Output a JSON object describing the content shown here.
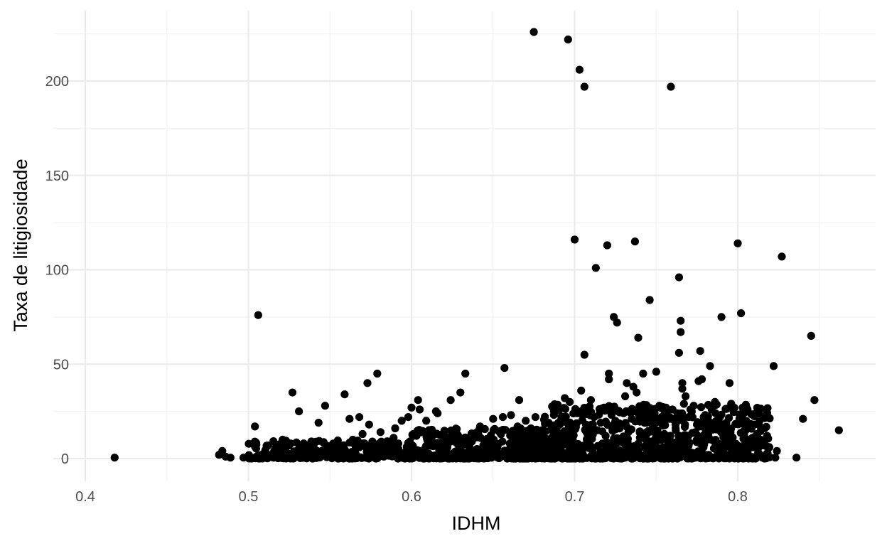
{
  "chart_data": {
    "type": "scatter",
    "xlabel": "IDHM",
    "ylabel": "Taxa de litigiosidade",
    "xlim": [
      0.4,
      0.88
    ],
    "ylim": [
      -10,
      225
    ],
    "x_ticks": [
      0.4,
      0.5,
      0.6,
      0.7,
      0.8
    ],
    "x_tick_labels": [
      "0.4",
      "0.5",
      "0.6",
      "0.7",
      "0.8"
    ],
    "y_ticks": [
      0,
      50,
      100,
      150,
      200
    ],
    "y_tick_labels": [
      "0",
      "50",
      "100",
      "150",
      "200"
    ],
    "grid": true,
    "point_color": "#000000",
    "points": [
      [
        0.418,
        0.5
      ],
      [
        0.482,
        2
      ],
      [
        0.484,
        4
      ],
      [
        0.486,
        1
      ],
      [
        0.489,
        0.5
      ],
      [
        0.497,
        0.5
      ],
      [
        0.502,
        0.5
      ],
      [
        0.504,
        17
      ],
      [
        0.505,
        1
      ],
      [
        0.506,
        76
      ],
      [
        0.508,
        2
      ],
      [
        0.51,
        0.5
      ],
      [
        0.514,
        2
      ],
      [
        0.518,
        3
      ],
      [
        0.52,
        0.5
      ],
      [
        0.521,
        10
      ],
      [
        0.523,
        2
      ],
      [
        0.526,
        8
      ],
      [
        0.527,
        35
      ],
      [
        0.529,
        1
      ],
      [
        0.531,
        25
      ],
      [
        0.533,
        3
      ],
      [
        0.535,
        0.5
      ],
      [
        0.538,
        2
      ],
      [
        0.54,
        6
      ],
      [
        0.542,
        1
      ],
      [
        0.543,
        19
      ],
      [
        0.545,
        4
      ],
      [
        0.547,
        28
      ],
      [
        0.55,
        2
      ],
      [
        0.552,
        8
      ],
      [
        0.555,
        1
      ],
      [
        0.558,
        5
      ],
      [
        0.559,
        34
      ],
      [
        0.561,
        3
      ],
      [
        0.562,
        21
      ],
      [
        0.564,
        10
      ],
      [
        0.566,
        2
      ],
      [
        0.568,
        22
      ],
      [
        0.57,
        13
      ],
      [
        0.572,
        6
      ],
      [
        0.573,
        40
      ],
      [
        0.574,
        18
      ],
      [
        0.576,
        9
      ],
      [
        0.578,
        3
      ],
      [
        0.579,
        45
      ],
      [
        0.581,
        14
      ],
      [
        0.583,
        1
      ],
      [
        0.585,
        7
      ],
      [
        0.587,
        2
      ],
      [
        0.589,
        11
      ],
      [
        0.59,
        16
      ],
      [
        0.592,
        5
      ],
      [
        0.594,
        20
      ],
      [
        0.596,
        3
      ],
      [
        0.598,
        22
      ],
      [
        0.599,
        9
      ],
      [
        0.6,
        27
      ],
      [
        0.601,
        1
      ],
      [
        0.603,
        12
      ],
      [
        0.604,
        31
      ],
      [
        0.605,
        26
      ],
      [
        0.607,
        4
      ],
      [
        0.609,
        20
      ],
      [
        0.611,
        15
      ],
      [
        0.613,
        7
      ],
      [
        0.615,
        25
      ],
      [
        0.616,
        24
      ],
      [
        0.618,
        2
      ],
      [
        0.62,
        10
      ],
      [
        0.622,
        6
      ],
      [
        0.624,
        31
      ],
      [
        0.626,
        1
      ],
      [
        0.628,
        12
      ],
      [
        0.63,
        35
      ],
      [
        0.633,
        45
      ],
      [
        0.635,
        4
      ],
      [
        0.637,
        9
      ],
      [
        0.64,
        2
      ],
      [
        0.642,
        17
      ],
      [
        0.644,
        7
      ],
      [
        0.646,
        1
      ],
      [
        0.648,
        11
      ],
      [
        0.65,
        21
      ],
      [
        0.652,
        5
      ],
      [
        0.654,
        14
      ],
      [
        0.656,
        22
      ],
      [
        0.657,
        48
      ],
      [
        0.659,
        3
      ],
      [
        0.661,
        23
      ],
      [
        0.663,
        8
      ],
      [
        0.665,
        17
      ],
      [
        0.666,
        31
      ],
      [
        0.668,
        2
      ],
      [
        0.67,
        20
      ],
      [
        0.672,
        12
      ],
      [
        0.674,
        6
      ],
      [
        0.675,
        226
      ],
      [
        0.676,
        22
      ],
      [
        0.678,
        1
      ],
      [
        0.68,
        15
      ],
      [
        0.682,
        9
      ],
      [
        0.684,
        19
      ],
      [
        0.686,
        4
      ],
      [
        0.688,
        26
      ],
      [
        0.69,
        11
      ],
      [
        0.692,
        22
      ],
      [
        0.693,
        3
      ],
      [
        0.694,
        32
      ],
      [
        0.696,
        222
      ],
      [
        0.697,
        30
      ],
      [
        0.698,
        14
      ],
      [
        0.7,
        116
      ],
      [
        0.701,
        7
      ],
      [
        0.702,
        25
      ],
      [
        0.703,
        206
      ],
      [
        0.704,
        36
      ],
      [
        0.705,
        1
      ],
      [
        0.706,
        197
      ],
      [
        0.706,
        55
      ],
      [
        0.707,
        18
      ],
      [
        0.708,
        27
      ],
      [
        0.709,
        10
      ],
      [
        0.71,
        31
      ],
      [
        0.711,
        4
      ],
      [
        0.712,
        22
      ],
      [
        0.713,
        101
      ],
      [
        0.714,
        15
      ],
      [
        0.715,
        2
      ],
      [
        0.716,
        19
      ],
      [
        0.717,
        8
      ],
      [
        0.718,
        27
      ],
      [
        0.719,
        12
      ],
      [
        0.72,
        113
      ],
      [
        0.721,
        45
      ],
      [
        0.721,
        42
      ],
      [
        0.722,
        26
      ],
      [
        0.723,
        5
      ],
      [
        0.724,
        75
      ],
      [
        0.725,
        20
      ],
      [
        0.726,
        72
      ],
      [
        0.727,
        1
      ],
      [
        0.728,
        17
      ],
      [
        0.729,
        9
      ],
      [
        0.73,
        24
      ],
      [
        0.731,
        33
      ],
      [
        0.732,
        40
      ],
      [
        0.733,
        14
      ],
      [
        0.734,
        3
      ],
      [
        0.735,
        21
      ],
      [
        0.736,
        38
      ],
      [
        0.737,
        115
      ],
      [
        0.738,
        35
      ],
      [
        0.739,
        64
      ],
      [
        0.74,
        11
      ],
      [
        0.741,
        25
      ],
      [
        0.742,
        45
      ],
      [
        0.743,
        6
      ],
      [
        0.744,
        19
      ],
      [
        0.745,
        22
      ],
      [
        0.746,
        84
      ],
      [
        0.747,
        2
      ],
      [
        0.748,
        17
      ],
      [
        0.749,
        24
      ],
      [
        0.75,
        46
      ],
      [
        0.751,
        10
      ],
      [
        0.752,
        28
      ],
      [
        0.753,
        4
      ],
      [
        0.754,
        20
      ],
      [
        0.755,
        13
      ],
      [
        0.756,
        27
      ],
      [
        0.757,
        7
      ],
      [
        0.758,
        21
      ],
      [
        0.759,
        197
      ],
      [
        0.76,
        26
      ],
      [
        0.761,
        1
      ],
      [
        0.762,
        15
      ],
      [
        0.763,
        24
      ],
      [
        0.764,
        56
      ],
      [
        0.764,
        96
      ],
      [
        0.765,
        73
      ],
      [
        0.765,
        67
      ],
      [
        0.766,
        40
      ],
      [
        0.766,
        37
      ],
      [
        0.767,
        29
      ],
      [
        0.768,
        33
      ],
      [
        0.769,
        9
      ],
      [
        0.77,
        22
      ],
      [
        0.771,
        26
      ],
      [
        0.772,
        3
      ],
      [
        0.773,
        28
      ],
      [
        0.774,
        14
      ],
      [
        0.775,
        18
      ],
      [
        0.776,
        41
      ],
      [
        0.777,
        57
      ],
      [
        0.778,
        42
      ],
      [
        0.779,
        6
      ],
      [
        0.78,
        23
      ],
      [
        0.781,
        11
      ],
      [
        0.782,
        20
      ],
      [
        0.783,
        49
      ],
      [
        0.784,
        26
      ],
      [
        0.785,
        0.5
      ],
      [
        0.786,
        30
      ],
      [
        0.787,
        16
      ],
      [
        0.788,
        8
      ],
      [
        0.789,
        22
      ],
      [
        0.79,
        75
      ],
      [
        0.791,
        5
      ],
      [
        0.792,
        14
      ],
      [
        0.794,
        12
      ],
      [
        0.795,
        40
      ],
      [
        0.796,
        29
      ],
      [
        0.797,
        9
      ],
      [
        0.798,
        3
      ],
      [
        0.799,
        0.5
      ],
      [
        0.8,
        114
      ],
      [
        0.801,
        21
      ],
      [
        0.802,
        77
      ],
      [
        0.803,
        27
      ],
      [
        0.804,
        12
      ],
      [
        0.805,
        8
      ],
      [
        0.806,
        26
      ],
      [
        0.807,
        17
      ],
      [
        0.808,
        0.5
      ],
      [
        0.809,
        11
      ],
      [
        0.81,
        18
      ],
      [
        0.812,
        6
      ],
      [
        0.814,
        10
      ],
      [
        0.816,
        22
      ],
      [
        0.818,
        12
      ],
      [
        0.822,
        49
      ],
      [
        0.823,
        0.5
      ],
      [
        0.824,
        4
      ],
      [
        0.827,
        107
      ],
      [
        0.836,
        0.5
      ],
      [
        0.84,
        21
      ],
      [
        0.845,
        65
      ],
      [
        0.847,
        31
      ],
      [
        0.862,
        15
      ]
    ]
  }
}
